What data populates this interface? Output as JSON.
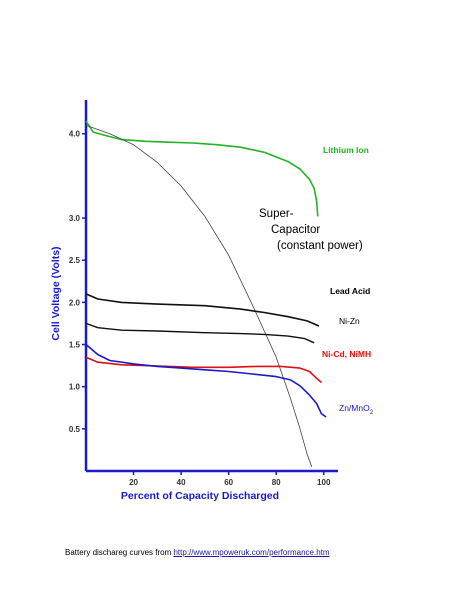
{
  "chart_data": {
    "type": "line",
    "xlabel": "Percent of Capacity Discharged",
    "ylabel": "Cell Voltage (Volts)",
    "xlim": [
      0,
      106
    ],
    "ylim": [
      0,
      4.4
    ],
    "x_ticks": [
      20,
      40,
      60,
      80,
      100
    ],
    "y_ticks": [
      0.5,
      1.0,
      1.5,
      2.0,
      2.5,
      3.0,
      4.0
    ],
    "y_tick_labels": [
      "0.5",
      "1.0",
      "1.5",
      "2.0",
      "2.5",
      "3.0",
      "4.0"
    ],
    "grid": false,
    "axis_color": "#1a1acc",
    "series": [
      {
        "name": "Lithium Ion",
        "color": "#22b422",
        "label_color": "#22b422",
        "points": [
          [
            0,
            4.15
          ],
          [
            3,
            4.02
          ],
          [
            8,
            3.98
          ],
          [
            15,
            3.93
          ],
          [
            25,
            3.91
          ],
          [
            35,
            3.9
          ],
          [
            45,
            3.89
          ],
          [
            55,
            3.87
          ],
          [
            65,
            3.84
          ],
          [
            75,
            3.78
          ],
          [
            85,
            3.67
          ],
          [
            90,
            3.58
          ],
          [
            94,
            3.46
          ],
          [
            96,
            3.35
          ],
          [
            97,
            3.2
          ],
          [
            97.5,
            3.02
          ]
        ]
      },
      {
        "name": "Super-\nCapacitor\n(constant power)",
        "color": "#444444",
        "label_color": "#000000",
        "points": [
          [
            0,
            4.1
          ],
          [
            10,
            4.0
          ],
          [
            20,
            3.87
          ],
          [
            30,
            3.66
          ],
          [
            40,
            3.38
          ],
          [
            50,
            3.02
          ],
          [
            60,
            2.56
          ],
          [
            70,
            1.97
          ],
          [
            80,
            1.35
          ],
          [
            86,
            0.86
          ],
          [
            90,
            0.5
          ],
          [
            93,
            0.2
          ],
          [
            95,
            0.05
          ]
        ]
      },
      {
        "name": "Lead Acid",
        "color": "#111111",
        "label_color": "#000000",
        "points": [
          [
            0,
            2.1
          ],
          [
            5,
            2.04
          ],
          [
            15,
            2.0
          ],
          [
            30,
            1.98
          ],
          [
            50,
            1.96
          ],
          [
            65,
            1.92
          ],
          [
            75,
            1.88
          ],
          [
            85,
            1.83
          ],
          [
            93,
            1.78
          ],
          [
            98,
            1.72
          ]
        ]
      },
      {
        "name": "Ni-Zn",
        "color": "#111111",
        "label_color": "#000000",
        "points": [
          [
            0,
            1.75
          ],
          [
            5,
            1.7
          ],
          [
            15,
            1.67
          ],
          [
            30,
            1.66
          ],
          [
            50,
            1.64
          ],
          [
            65,
            1.63
          ],
          [
            75,
            1.62
          ],
          [
            85,
            1.6
          ],
          [
            92,
            1.57
          ],
          [
            96,
            1.52
          ]
        ]
      },
      {
        "name": "Ni-Cd,  NiMH",
        "color": "#dd1111",
        "label_color": "#dd1111",
        "points": [
          [
            0,
            1.35
          ],
          [
            5,
            1.29
          ],
          [
            15,
            1.26
          ],
          [
            25,
            1.25
          ],
          [
            35,
            1.24
          ],
          [
            45,
            1.23
          ],
          [
            60,
            1.23
          ],
          [
            72,
            1.24
          ],
          [
            82,
            1.24
          ],
          [
            90,
            1.22
          ],
          [
            94,
            1.18
          ],
          [
            97,
            1.1
          ],
          [
            99,
            1.05
          ]
        ]
      },
      {
        "name": "Zn/MnO2",
        "color": "#1a1acc",
        "label_color": "#1a1acc",
        "points": [
          [
            0,
            1.5
          ],
          [
            5,
            1.38
          ],
          [
            10,
            1.31
          ],
          [
            20,
            1.27
          ],
          [
            30,
            1.24
          ],
          [
            40,
            1.22
          ],
          [
            50,
            1.2
          ],
          [
            60,
            1.18
          ],
          [
            70,
            1.15
          ],
          [
            80,
            1.12
          ],
          [
            86,
            1.08
          ],
          [
            90,
            1.01
          ],
          [
            94,
            0.9
          ],
          [
            97,
            0.8
          ],
          [
            99,
            0.68
          ],
          [
            101,
            0.64
          ]
        ]
      }
    ]
  },
  "caption": {
    "text": "Battery dischareg curves from ",
    "link": "http://www.mpoweruk.com/performance.htm"
  }
}
